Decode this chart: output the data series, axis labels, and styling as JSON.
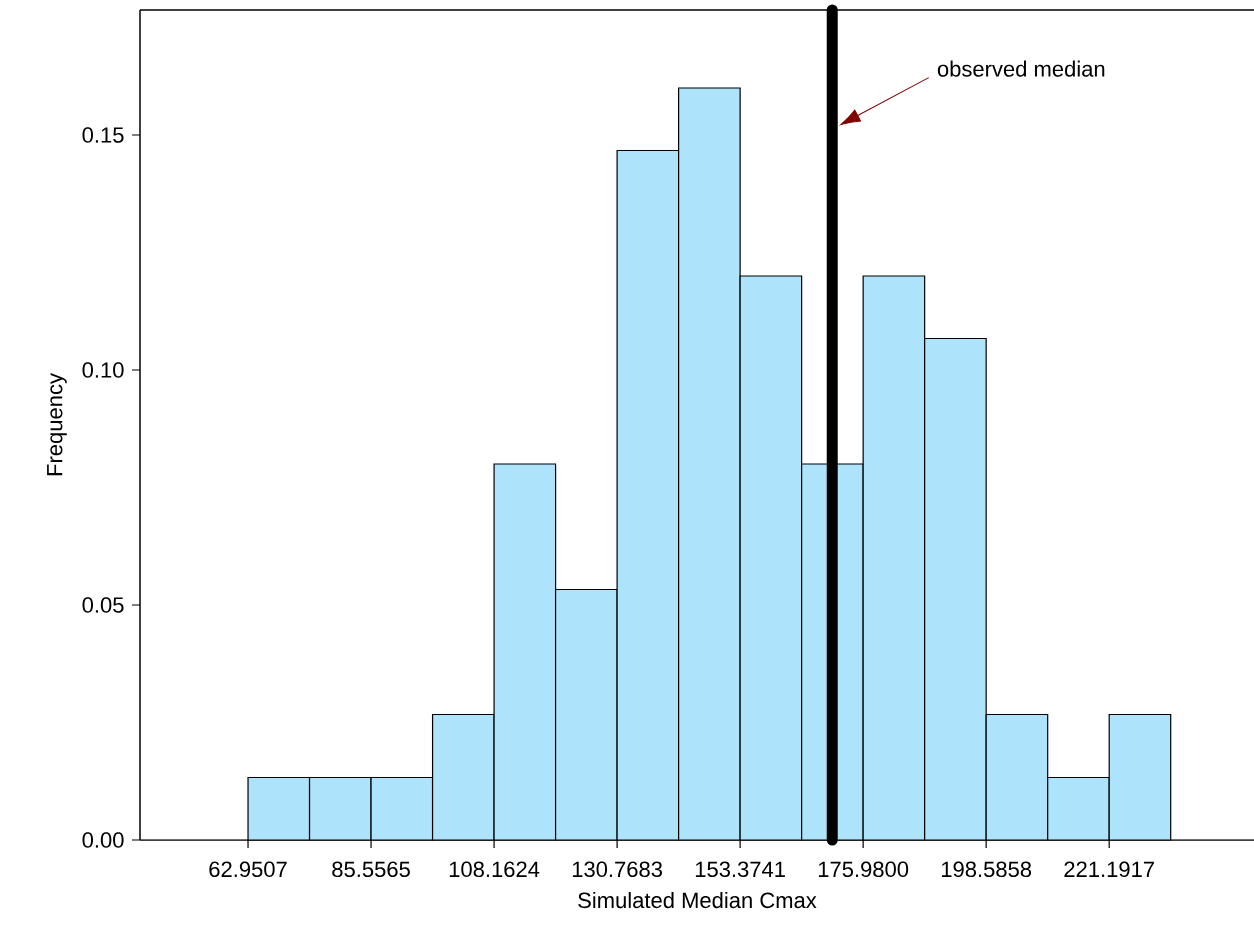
{
  "chart_data": {
    "type": "histogram",
    "xlabel": "Simulated Median Cmax",
    "ylabel": "Frequency",
    "bins": [
      62.9507,
      74.2536,
      85.5565,
      96.8595,
      108.1624,
      119.4654,
      130.7683,
      142.0712,
      153.3741,
      164.6771,
      175.98,
      187.2829,
      198.5858,
      209.8888,
      221.1917,
      232.4946
    ],
    "values": [
      0.0133,
      0.0133,
      0.0133,
      0.0267,
      0.08,
      0.0533,
      0.1467,
      0.16,
      0.12,
      0.08,
      0.12,
      0.1067,
      0.0267,
      0.0133,
      0.0267
    ],
    "color": "#aee3fc",
    "xlim": [
      43.1,
      247.8
    ],
    "ylim": [
      0,
      0.1766
    ],
    "xticks": [
      62.9507,
      85.5565,
      108.1624,
      130.7683,
      153.3741,
      {
        "value": 175.98,
        "label": "175.9800"
      },
      198.5858,
      221.1917
    ],
    "yticks": [
      {
        "value": 0,
        "label": "0.00"
      },
      {
        "value": 0.05,
        "label": "0.05"
      },
      {
        "value": 0.1,
        "label": "0.10"
      },
      {
        "value": 0.15,
        "label": "0.15"
      }
    ],
    "ref_lines": [
      {
        "axis": "x",
        "value": 170.3,
        "color": "#000000"
      }
    ],
    "annotations": [
      {
        "text": "observed median",
        "x": 173.7,
        "y": 0.1538
      }
    ],
    "grid": false
  }
}
